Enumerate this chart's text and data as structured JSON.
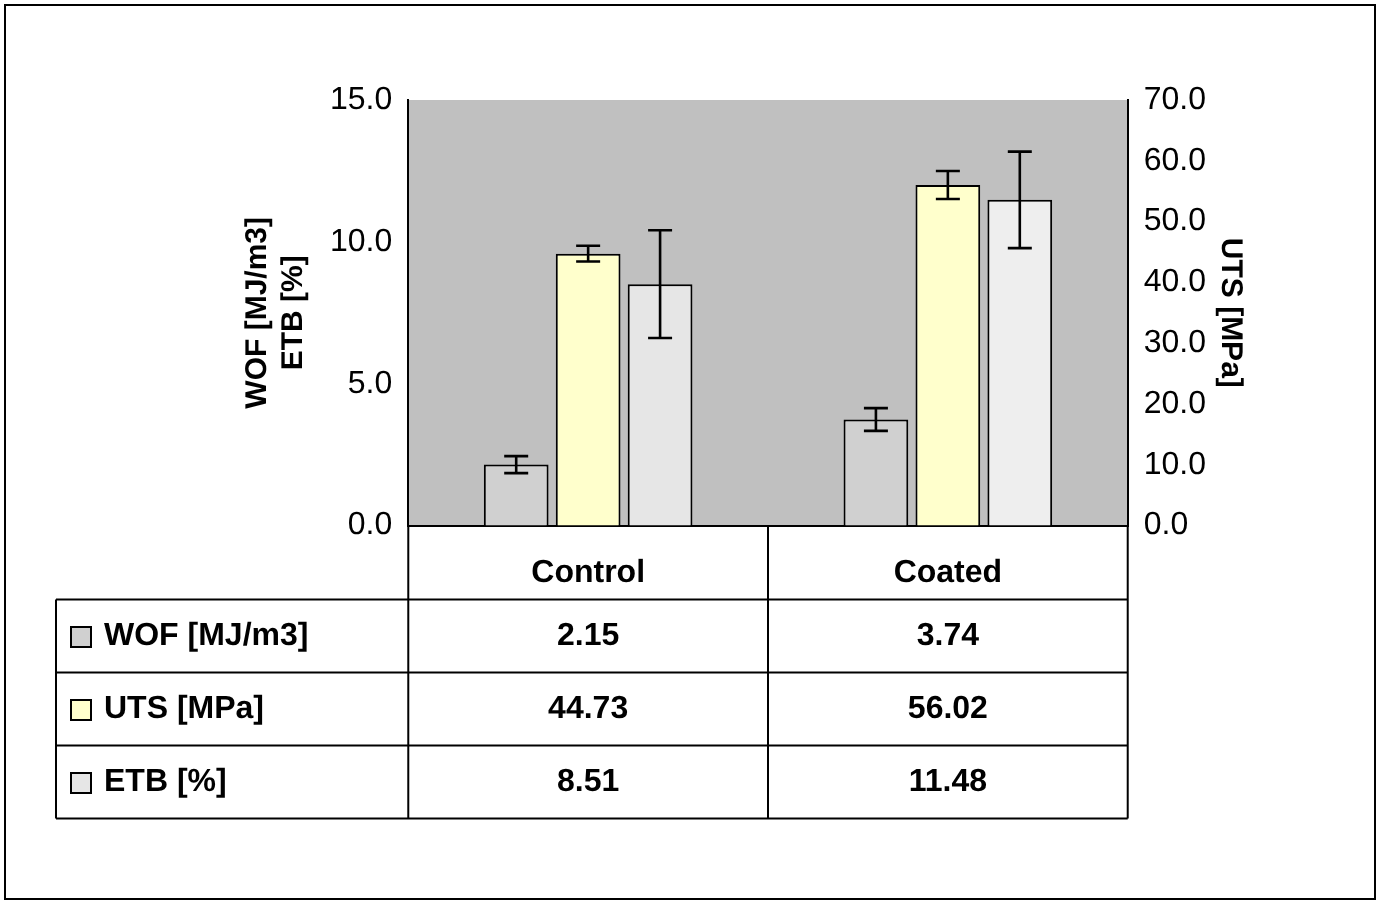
{
  "chart_data": {
    "type": "bar",
    "ylabel": "WOF [MJ/m3]\nETB [%]",
    "y2label": "UTS [MPa]",
    "categories": [
      "Control",
      "Coated"
    ],
    "series": [
      {
        "name": "WOF [MJ/m3]",
        "color": "#d0d0d0",
        "values": [
          2.15,
          3.74
        ],
        "errors": [
          0.3,
          0.4
        ]
      },
      {
        "name": "UTS [MPa]",
        "color": "#ffffcc",
        "values": [
          44.73,
          56.02
        ],
        "errors": [
          1.3,
          2.3
        ],
        "axis": "y2"
      },
      {
        "name": "ETB [%]",
        "colors": [
          "#e6e6e6",
          "#eeeeee"
        ],
        "values": [
          8.51,
          11.48
        ],
        "errors": [
          1.9,
          1.7
        ]
      }
    ],
    "ylim": [
      0,
      15
    ],
    "yticks": [
      {
        "value": 0,
        "label": "0.0"
      },
      {
        "value": 5,
        "label": "5.0"
      },
      {
        "value": 10,
        "label": "10.0"
      },
      {
        "value": 15,
        "label": "15.0"
      }
    ],
    "y2lim": [
      0,
      70
    ],
    "y2ticks": [
      {
        "value": 0,
        "label": "0.0"
      },
      {
        "value": 10,
        "label": "10.0"
      },
      {
        "value": 20,
        "label": "20.0"
      },
      {
        "value": 30,
        "label": "30.0"
      },
      {
        "value": 40,
        "label": "40.0"
      },
      {
        "value": 50,
        "label": "50.0"
      },
      {
        "value": 60,
        "label": "60.0"
      },
      {
        "value": 70,
        "label": "70.0"
      }
    ],
    "data_labels": true,
    "legend": "bottom"
  }
}
